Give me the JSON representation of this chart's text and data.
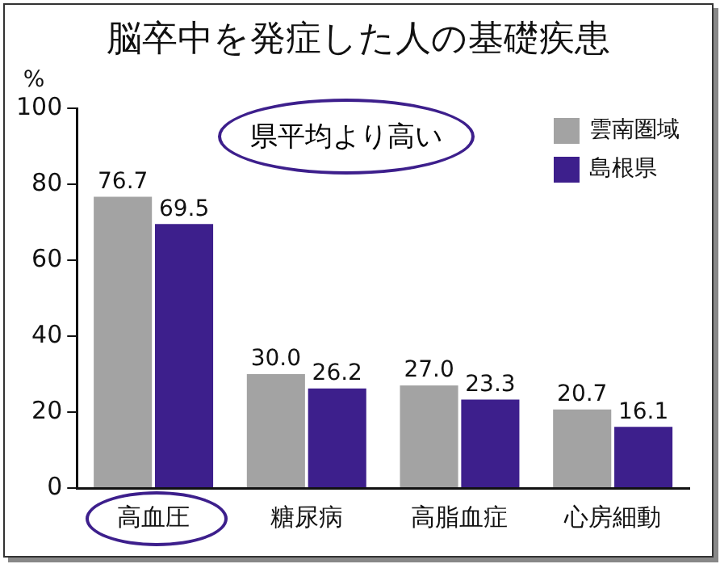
{
  "chart_data": {
    "type": "bar",
    "title": "脳卒中を発症した人の基礎疾患",
    "ylabel": "%",
    "categories": [
      "高血圧",
      "糖尿病",
      "高脂血症",
      "心房細動"
    ],
    "series": [
      {
        "name": "雲南圏域",
        "color": "#a3a3a3",
        "values": [
          76.7,
          30.0,
          27.0,
          20.7
        ],
        "value_labels": [
          "76.7",
          "30.0",
          "27.0",
          "20.7"
        ]
      },
      {
        "name": "島根県",
        "color": "#3d1f8c",
        "values": [
          69.5,
          26.2,
          23.3,
          16.1
        ],
        "value_labels": [
          "69.5",
          "26.2",
          "23.3",
          "16.1"
        ]
      }
    ],
    "ylim": [
      0,
      100
    ],
    "yticks": [
      0,
      20,
      40,
      60,
      80,
      100
    ],
    "grid": false,
    "legend": "top right",
    "annotations": [
      "県平均より高い"
    ]
  }
}
